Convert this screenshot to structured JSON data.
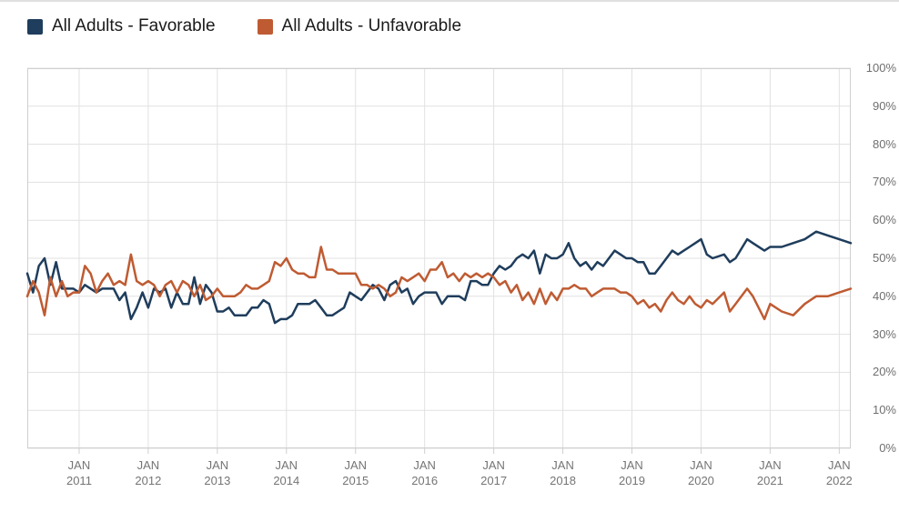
{
  "legend": {
    "items": [
      {
        "label": "All Adults - Favorable",
        "color": "#1f3d5c"
      },
      {
        "label": "All Adults - Unfavorable",
        "color": "#bf5b32"
      }
    ]
  },
  "chart_data": {
    "type": "line",
    "title": "",
    "grid": true,
    "legend_position": "top-left",
    "plot_border_color": "#cfcfcf",
    "gridline_color": "#e1e1e1",
    "y_axis": {
      "min": 0,
      "max": 100,
      "ticks": [
        {
          "v": 0,
          "label": "0%"
        },
        {
          "v": 10,
          "label": "10%"
        },
        {
          "v": 20,
          "label": "20%"
        },
        {
          "v": 30,
          "label": "30%"
        },
        {
          "v": 40,
          "label": "40%"
        },
        {
          "v": 50,
          "label": "50%"
        },
        {
          "v": 60,
          "label": "60%"
        },
        {
          "v": 70,
          "label": "70%"
        },
        {
          "v": 80,
          "label": "80%"
        },
        {
          "v": 90,
          "label": "90%"
        },
        {
          "v": 100,
          "label": "100%"
        }
      ]
    },
    "x_axis": {
      "tick_month_label": "JAN",
      "tick_years": [
        "2011",
        "2012",
        "2013",
        "2014",
        "2015",
        "2016",
        "2017",
        "2018",
        "2019",
        "2020",
        "2021",
        "2022"
      ]
    },
    "series": [
      {
        "name": "All Adults - Favorable",
        "color": "#1f3d5c",
        "column": 1
      },
      {
        "name": "All Adults - Unfavorable",
        "color": "#bf5b32",
        "column": 2
      }
    ],
    "columns": [
      "date",
      "favorable_pct",
      "unfavorable_pct"
    ],
    "points": [
      [
        "2010-04",
        46,
        40
      ],
      [
        "2010-05",
        41,
        44
      ],
      [
        "2010-06",
        48,
        41
      ],
      [
        "2010-07",
        50,
        35
      ],
      [
        "2010-08",
        43,
        45
      ],
      [
        "2010-09",
        49,
        40
      ],
      [
        "2010-10",
        42,
        44
      ],
      [
        "2010-11",
        42,
        40
      ],
      [
        "2010-12",
        42,
        41
      ],
      [
        "2011-01",
        41,
        41
      ],
      [
        "2011-02",
        43,
        48
      ],
      [
        "2011-03",
        42,
        46
      ],
      [
        "2011-04",
        41,
        41
      ],
      [
        "2011-05",
        42,
        44
      ],
      [
        "2011-06",
        42,
        46
      ],
      [
        "2011-07",
        42,
        43
      ],
      [
        "2011-08",
        39,
        44
      ],
      [
        "2011-09",
        41,
        43
      ],
      [
        "2011-10",
        34,
        51
      ],
      [
        "2011-11",
        37,
        44
      ],
      [
        "2011-12",
        41,
        43
      ],
      [
        "2012-01",
        37,
        44
      ],
      [
        "2012-02",
        42,
        43
      ],
      [
        "2012-03",
        41,
        40
      ],
      [
        "2012-04",
        42,
        43
      ],
      [
        "2012-05",
        37,
        44
      ],
      [
        "2012-06",
        41,
        41
      ],
      [
        "2012-07",
        38,
        44
      ],
      [
        "2012-08",
        38,
        43
      ],
      [
        "2012-09",
        45,
        40
      ],
      [
        "2012-10",
        38,
        43
      ],
      [
        "2012-11",
        43,
        39
      ],
      [
        "2012-12",
        41,
        40
      ],
      [
        "2013-01",
        36,
        42
      ],
      [
        "2013-02",
        36,
        40
      ],
      [
        "2013-03",
        37,
        40
      ],
      [
        "2013-04",
        35,
        40
      ],
      [
        "2013-05",
        35,
        41
      ],
      [
        "2013-06",
        35,
        43
      ],
      [
        "2013-07",
        37,
        42
      ],
      [
        "2013-08",
        37,
        42
      ],
      [
        "2013-09",
        39,
        43
      ],
      [
        "2013-10",
        38,
        44
      ],
      [
        "2013-11",
        33,
        49
      ],
      [
        "2013-12",
        34,
        48
      ],
      [
        "2014-01",
        34,
        50
      ],
      [
        "2014-02",
        35,
        47
      ],
      [
        "2014-03",
        38,
        46
      ],
      [
        "2014-04",
        38,
        46
      ],
      [
        "2014-05",
        38,
        45
      ],
      [
        "2014-06",
        39,
        45
      ],
      [
        "2014-07",
        37,
        53
      ],
      [
        "2014-08",
        35,
        47
      ],
      [
        "2014-09",
        35,
        47
      ],
      [
        "2014-10",
        36,
        46
      ],
      [
        "2014-11",
        37,
        46
      ],
      [
        "2014-12",
        41,
        46
      ],
      [
        "2015-01",
        40,
        46
      ],
      [
        "2015-02",
        39,
        43
      ],
      [
        "2015-03",
        41,
        43
      ],
      [
        "2015-04",
        43,
        42
      ],
      [
        "2015-05",
        42,
        43
      ],
      [
        "2015-06",
        39,
        42
      ],
      [
        "2015-07",
        43,
        40
      ],
      [
        "2015-08",
        44,
        41
      ],
      [
        "2015-09",
        41,
        45
      ],
      [
        "2015-10",
        42,
        44
      ],
      [
        "2015-11",
        38,
        45
      ],
      [
        "2015-12",
        40,
        46
      ],
      [
        "2016-01",
        41,
        44
      ],
      [
        "2016-02",
        41,
        47
      ],
      [
        "2016-03",
        41,
        47
      ],
      [
        "2016-04",
        38,
        49
      ],
      [
        "2016-05",
        40,
        45
      ],
      [
        "2016-06",
        40,
        46
      ],
      [
        "2016-07",
        40,
        44
      ],
      [
        "2016-08",
        39,
        46
      ],
      [
        "2016-09",
        44,
        45
      ],
      [
        "2016-10",
        44,
        46
      ],
      [
        "2016-11",
        43,
        45
      ],
      [
        "2016-12",
        43,
        46
      ],
      [
        "2017-01",
        46,
        45
      ],
      [
        "2017-02",
        48,
        43
      ],
      [
        "2017-03",
        47,
        44
      ],
      [
        "2017-04",
        48,
        41
      ],
      [
        "2017-05",
        50,
        43
      ],
      [
        "2017-06",
        51,
        39
      ],
      [
        "2017-07",
        50,
        41
      ],
      [
        "2017-08",
        52,
        38
      ],
      [
        "2017-09",
        46,
        42
      ],
      [
        "2017-10",
        51,
        38
      ],
      [
        "2017-11",
        50,
        41
      ],
      [
        "2017-12",
        50,
        39
      ],
      [
        "2018-01",
        51,
        42
      ],
      [
        "2018-02",
        54,
        42
      ],
      [
        "2018-03",
        50,
        43
      ],
      [
        "2018-04",
        48,
        42
      ],
      [
        "2018-05",
        49,
        42
      ],
      [
        "2018-06",
        47,
        40
      ],
      [
        "2018-07",
        49,
        41
      ],
      [
        "2018-08",
        48,
        42
      ],
      [
        "2018-09",
        50,
        42
      ],
      [
        "2018-10",
        52,
        42
      ],
      [
        "2018-11",
        51,
        41
      ],
      [
        "2018-12",
        50,
        41
      ],
      [
        "2019-01",
        50,
        40
      ],
      [
        "2019-02",
        49,
        38
      ],
      [
        "2019-03",
        49,
        39
      ],
      [
        "2019-04",
        46,
        37
      ],
      [
        "2019-05",
        46,
        38
      ],
      [
        "2019-06",
        48,
        36
      ],
      [
        "2019-07",
        50,
        39
      ],
      [
        "2019-08",
        52,
        41
      ],
      [
        "2019-09",
        51,
        39
      ],
      [
        "2019-10",
        52,
        38
      ],
      [
        "2019-11",
        53,
        40
      ],
      [
        "2019-12",
        54,
        38
      ],
      [
        "2020-01",
        55,
        37
      ],
      [
        "2020-02",
        51,
        39
      ],
      [
        "2020-03",
        50,
        38
      ],
      [
        "2020-05",
        51,
        41
      ],
      [
        "2020-06",
        49,
        36
      ],
      [
        "2020-07",
        50,
        38
      ],
      [
        "2020-09",
        55,
        42
      ],
      [
        "2020-10",
        54,
        40
      ],
      [
        "2020-12",
        52,
        34
      ],
      [
        "2021-01",
        53,
        38
      ],
      [
        "2021-03",
        53,
        36
      ],
      [
        "2021-05",
        54,
        35
      ],
      [
        "2021-07",
        55,
        38
      ],
      [
        "2021-09",
        57,
        40
      ],
      [
        "2021-11",
        56,
        40
      ],
      [
        "2022-01",
        55,
        41
      ],
      [
        "2022-03",
        54,
        42
      ]
    ]
  }
}
